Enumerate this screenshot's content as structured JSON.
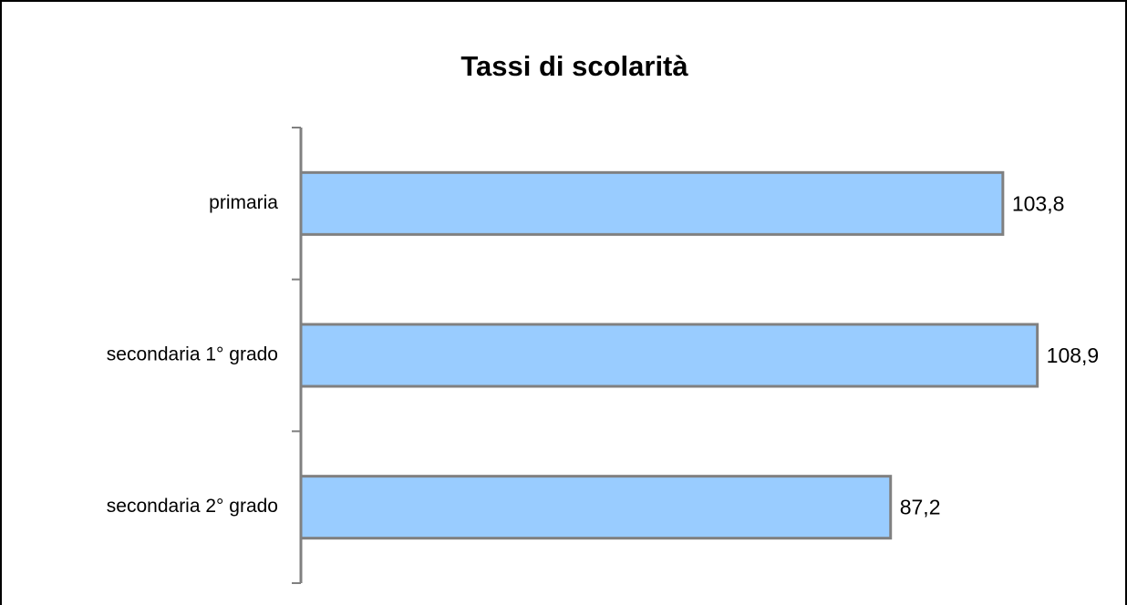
{
  "chart_data": {
    "type": "bar",
    "orientation": "horizontal",
    "title": "Tassi di scolarità",
    "categories": [
      "primaria",
      "secondaria 1° grado",
      "secondaria 2° grado"
    ],
    "values": [
      103.8,
      108.9,
      87.2
    ],
    "value_labels": [
      "103,8",
      "108,9",
      "87,2"
    ],
    "color": "#99ccff",
    "xlim": [
      0,
      120
    ]
  }
}
